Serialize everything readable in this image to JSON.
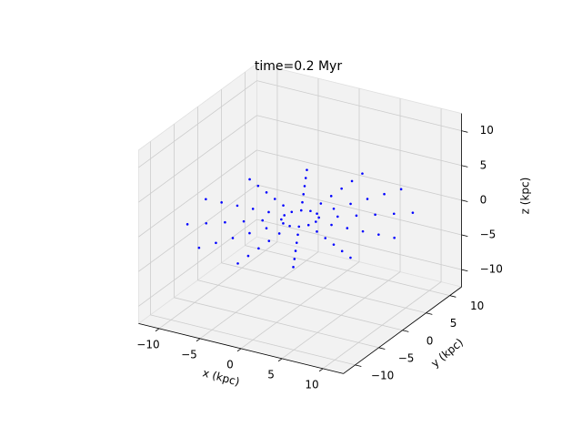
{
  "chart_data": {
    "type": "scatter3d",
    "title": "time=0.2 Myr",
    "xlabel": "x (kpc)",
    "ylabel": "y (kpc)",
    "zlabel": "z (kpc)",
    "color": "#0000ff",
    "grid": true,
    "xlim": [
      -12.5,
      12.5
    ],
    "ylim": [
      -12.5,
      12.5
    ],
    "zlim": [
      -12.5,
      12.5
    ],
    "xticks": [
      {
        "value": -10,
        "label": "−10"
      },
      {
        "value": -5,
        "label": "−5"
      },
      0,
      5,
      10
    ],
    "yticks": [
      {
        "value": -10,
        "label": "−10"
      },
      {
        "value": -5,
        "label": "−5"
      },
      0,
      5,
      10
    ],
    "zticks": [
      {
        "value": -10,
        "label": "−10"
      },
      {
        "value": -5,
        "label": "−5"
      },
      0,
      5,
      10
    ],
    "x": [
      1.6,
      1.69,
      1.32,
      0.6,
      -0.28,
      -1.09,
      -1.6,
      -1.69,
      -1.32,
      -0.6,
      0.28,
      1.09,
      3.2,
      3.37,
      2.64,
      1.2,
      -0.56,
      -2.17,
      -3.2,
      -3.37,
      -2.64,
      -1.2,
      0.56,
      2.17,
      4.8,
      5.06,
      3.96,
      1.8,
      -0.84,
      -3.26,
      -4.8,
      -5.06,
      -3.96,
      -1.8,
      0.84,
      3.26,
      6.4,
      6.74,
      5.28,
      2.4,
      -1.12,
      -4.34,
      -6.4,
      -6.74,
      -5.28,
      -2.4,
      1.12,
      4.34,
      8,
      8.43,
      6.6,
      3,
      -1.4,
      -5.43,
      -8,
      -8.43,
      -6.6,
      -3,
      1.4,
      5.43,
      9.6,
      10.12,
      7.92,
      3.6,
      -1.68,
      -6.52,
      -9.6,
      -10.12,
      -7.92,
      -3.6,
      1.68,
      6.52
    ],
    "y": [
      1.2,
      0.64,
      -0.09,
      -0.8,
      -1.29,
      -1.44,
      -1.2,
      -0.64,
      0.09,
      0.8,
      1.29,
      1.44,
      2.4,
      1.28,
      -0.18,
      -1.6,
      -2.58,
      -2.88,
      -2.4,
      -1.28,
      0.18,
      1.6,
      2.58,
      2.88,
      3.6,
      1.92,
      -0.28,
      -2.4,
      -3.88,
      -4.32,
      -3.6,
      -1.92,
      0.28,
      2.4,
      3.88,
      4.32,
      4.8,
      2.56,
      -0.37,
      -3.2,
      -5.17,
      -5.76,
      -4.8,
      -2.56,
      0.37,
      3.2,
      5.17,
      5.76,
      6,
      3.2,
      -0.46,
      -4,
      -6.46,
      -7.2,
      -6,
      -3.2,
      0.46,
      4,
      6.46,
      7.2,
      7.2,
      3.84,
      -0.55,
      -4.8,
      -7.75,
      -8.64,
      -7.2,
      -3.84,
      0.55,
      4.8,
      7.75,
      8.64
    ],
    "z": [
      0,
      0.87,
      1.51,
      1.74,
      1.51,
      0.87,
      0,
      -0.87,
      -1.51,
      -1.74,
      -1.51,
      -0.87,
      0,
      1.74,
      3.01,
      3.48,
      3.01,
      1.74,
      0,
      -1.74,
      -3.01,
      -3.48,
      -3.01,
      -1.74,
      0,
      2.61,
      4.52,
      5.22,
      4.52,
      2.61,
      0,
      -2.61,
      -4.52,
      -5.22,
      -4.52,
      -2.61,
      0,
      3.48,
      6.02,
      6.96,
      6.02,
      3.48,
      0,
      -3.48,
      -6.02,
      -6.96,
      -6.02,
      -3.48,
      0,
      4.35,
      7.53,
      8.7,
      7.53,
      4.35,
      0,
      -4.35,
      -7.53,
      -8.7,
      -7.53,
      -4.35,
      0,
      5.22,
      9.04,
      10.44,
      9.04,
      5.22,
      0,
      -5.22,
      -9.04,
      -10.44,
      -9.04,
      -5.22
    ]
  }
}
